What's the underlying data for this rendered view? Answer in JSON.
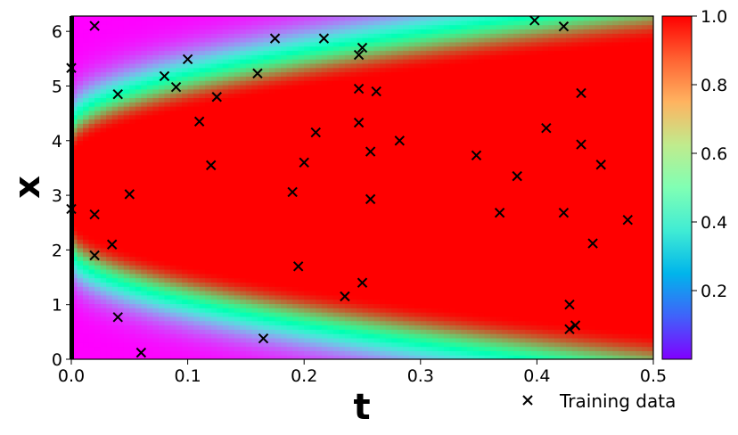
{
  "chart_data": {
    "type": "heatmap",
    "xlabel": "t",
    "ylabel": "x",
    "xlim": [
      0.0,
      0.5
    ],
    "ylim": [
      0.0,
      6.28
    ],
    "x_ticks": [
      0.0,
      0.1,
      0.2,
      0.3,
      0.4,
      0.5
    ],
    "x_tick_labels": [
      "0.0",
      "0.1",
      "0.2",
      "0.3",
      "0.4",
      "0.5"
    ],
    "y_ticks": [
      0,
      1,
      2,
      3,
      4,
      5,
      6
    ],
    "y_tick_labels": [
      "0",
      "1",
      "2",
      "3",
      "4",
      "5",
      "6"
    ],
    "colormap": "rainbow",
    "colorbar": {
      "range": [
        0.0,
        1.0
      ],
      "ticks": [
        0.2,
        0.4,
        0.6,
        0.8,
        1.0
      ],
      "tick_labels": [
        "0.2",
        "0.4",
        "0.6",
        "0.8",
        "1.0"
      ]
    },
    "field_description": "u(t,x): bell-shaped profile centred at x = 3.14 whose high-value band widens as t increases",
    "legend": {
      "placement": "bottom-right",
      "entries": [
        "Training data"
      ]
    },
    "grid": false,
    "series": [
      {
        "name": "Training data",
        "marker": "x",
        "color": "#000000",
        "points": [
          [
            0.02,
            6.1
          ],
          [
            0.0,
            5.33
          ],
          [
            0.04,
            4.85
          ],
          [
            0.08,
            5.18
          ],
          [
            0.09,
            4.98
          ],
          [
            0.1,
            5.49
          ],
          [
            0.11,
            4.35
          ],
          [
            0.125,
            4.8
          ],
          [
            0.16,
            5.23
          ],
          [
            0.175,
            5.87
          ],
          [
            0.217,
            5.87
          ],
          [
            0.247,
            5.57
          ],
          [
            0.25,
            5.7
          ],
          [
            0.247,
            4.95
          ],
          [
            0.262,
            4.9
          ],
          [
            0.247,
            4.33
          ],
          [
            0.21,
            4.15
          ],
          [
            0.12,
            3.55
          ],
          [
            0.2,
            3.6
          ],
          [
            0.257,
            3.8
          ],
          [
            0.282,
            4.0
          ],
          [
            0.05,
            3.02
          ],
          [
            0.19,
            3.06
          ],
          [
            0.257,
            2.93
          ],
          [
            0.0,
            2.75
          ],
          [
            0.02,
            2.65
          ],
          [
            0.035,
            2.1
          ],
          [
            0.02,
            1.9
          ],
          [
            0.195,
            1.7
          ],
          [
            0.04,
            0.77
          ],
          [
            0.06,
            0.12
          ],
          [
            0.165,
            0.38
          ],
          [
            0.235,
            1.15
          ],
          [
            0.25,
            1.4
          ],
          [
            0.348,
            3.73
          ],
          [
            0.368,
            2.68
          ],
          [
            0.383,
            3.35
          ],
          [
            0.398,
            6.2
          ],
          [
            0.423,
            6.09
          ],
          [
            0.408,
            4.23
          ],
          [
            0.438,
            4.87
          ],
          [
            0.438,
            3.93
          ],
          [
            0.455,
            3.56
          ],
          [
            0.423,
            2.68
          ],
          [
            0.448,
            2.12
          ],
          [
            0.478,
            2.55
          ],
          [
            0.428,
            1.0
          ],
          [
            0.433,
            0.62
          ],
          [
            0.428,
            0.55
          ]
        ]
      }
    ]
  }
}
